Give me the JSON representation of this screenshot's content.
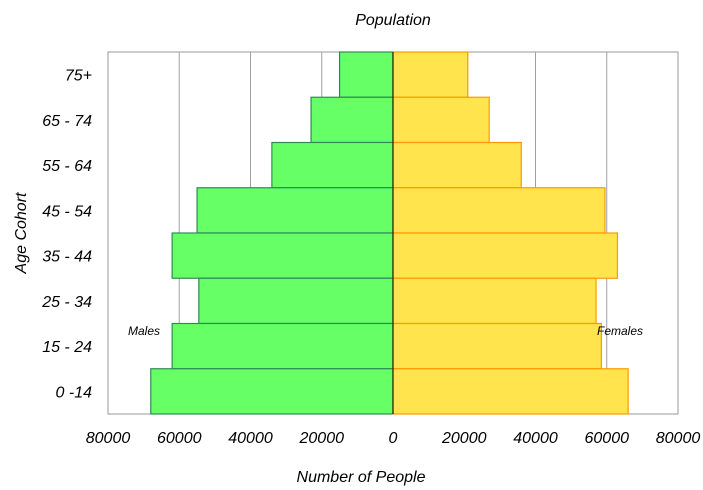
{
  "chart_data": {
    "type": "bar",
    "orientation": "horizontal-butterfly",
    "title": "Population",
    "xlabel": "Number of People",
    "ylabel": "Age Cohort",
    "categories": [
      "75+",
      "65 - 74",
      "55 - 64",
      "45 - 54",
      "35 - 44",
      "25 - 34",
      "15 - 24",
      "0 -14"
    ],
    "series": [
      {
        "name": "Males",
        "side": "left",
        "color": "#66ff66",
        "edge": "#2e8b57",
        "values": [
          15000,
          23000,
          34000,
          55000,
          62000,
          54500,
          62000,
          68000
        ]
      },
      {
        "name": "Females",
        "side": "right",
        "color": "#ffe44d",
        "edge": "#ff9900",
        "values": [
          21000,
          27000,
          36000,
          59500,
          63000,
          57000,
          58500,
          66000
        ]
      }
    ],
    "xlim": [
      -80000,
      80000
    ],
    "x_tick_labels": [
      "80000",
      "60000",
      "40000",
      "20000",
      "0",
      "20000",
      "40000",
      "60000",
      "80000"
    ],
    "grid": "vertical",
    "legend": "inline-labels"
  }
}
